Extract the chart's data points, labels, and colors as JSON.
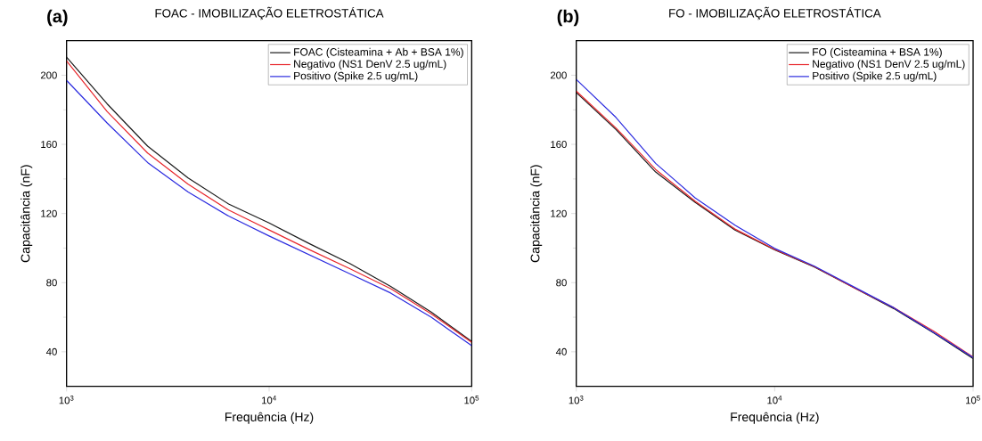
{
  "chart_data": [
    {
      "type": "line",
      "title": "FOAC - IMOBILIZAÇÃO ELETROSTÁTICA",
      "annotations": [
        "(a)"
      ],
      "xlabel": "Frequência (Hz)",
      "ylabel": "Capacitância (nF)",
      "log": "x",
      "x": [
        1000,
        1585,
        2512,
        3981,
        6310,
        10000,
        15849,
        25119,
        39811,
        63096,
        100000
      ],
      "series": [
        {
          "name": "FOAC (Cisteamina + Ab + BSA 1%)",
          "color": "#1a1a1a",
          "values": [
            210.5,
            183.5,
            159,
            140.6,
            125.5,
            114.5,
            102.5,
            91,
            77.8,
            63,
            46
          ]
        },
        {
          "name": "Negativo (NS1 DenV 2.5 ug/mL)",
          "color": "#e8262b",
          "values": [
            208.3,
            179,
            155,
            137,
            122,
            110.5,
            99,
            88,
            76.5,
            62,
            45.5
          ]
        },
        {
          "name": "Positivo (Spike 2.5 ug/mL)",
          "color": "#2b2bdf",
          "values": [
            197,
            172.4,
            149.5,
            132.5,
            118.5,
            107,
            96,
            85,
            74,
            60,
            43.5
          ]
        }
      ],
      "xlim": [
        1000,
        100000
      ],
      "xticks": [
        {
          "value": 1000,
          "label": "10$^{3}$"
        },
        {
          "value": 10000,
          "label": "10$^{4}$"
        },
        {
          "value": 100000,
          "label": "10$^{5}$"
        }
      ],
      "ylim": [
        20,
        220
      ],
      "yticks": [
        40,
        80,
        120,
        160,
        200
      ],
      "legend": "top right",
      "grid": false,
      "line_style": "solid",
      "marker": "none"
    },
    {
      "type": "line",
      "title": "FO - IMOBILIZAÇÃO ELETROSTÁTICA",
      "annotations": [
        "(b)"
      ],
      "xlabel": "Frequência (Hz)",
      "ylabel": "Capacitância (nF)",
      "log": "x",
      "x": [
        1000,
        1585,
        2512,
        3981,
        6310,
        10000,
        15849,
        25119,
        39811,
        63096,
        100000
      ],
      "series": [
        {
          "name": "FO (Cisteamina + BSA 1%)",
          "color": "#1a1a1a",
          "values": [
            190,
            168.6,
            144,
            126.4,
            110.4,
            99,
            89,
            77,
            65,
            51,
            36
          ]
        },
        {
          "name": "Negativo (NS1 DenV 2.5 ug/mL)",
          "color": "#e8262b",
          "values": [
            190.8,
            169.5,
            145.5,
            127,
            111,
            99.2,
            89.3,
            77,
            65.5,
            52,
            37
          ]
        },
        {
          "name": "Positivo (Spike 2.5 ug/mL)",
          "color": "#2b2bdf",
          "values": [
            197.6,
            175.6,
            149,
            129,
            113.2,
            99.8,
            89.5,
            77.5,
            65.5,
            51.3,
            36.7
          ]
        }
      ],
      "xlim": [
        1000,
        100000
      ],
      "xticks": [
        {
          "value": 1000,
          "label": "10$^{3}$"
        },
        {
          "value": 10000,
          "label": "10$^{4}$"
        },
        {
          "value": 100000,
          "label": "10$^{5}$"
        }
      ],
      "ylim": [
        20,
        220
      ],
      "yticks": [
        40,
        80,
        120,
        160,
        200
      ],
      "legend": "top right",
      "grid": false,
      "line_style": "solid",
      "marker": "none"
    }
  ]
}
